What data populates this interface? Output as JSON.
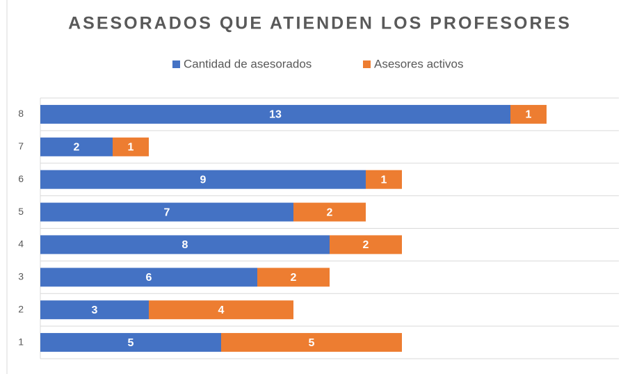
{
  "chart_data": {
    "type": "stacked_barh",
    "title": "ASESORADOS QUE ATIENDEN LOS PROFESORES",
    "categories": [
      "1",
      "2",
      "3",
      "4",
      "5",
      "6",
      "7",
      "8"
    ],
    "series": [
      {
        "name": "Cantidad de asesorados",
        "color": "#4472c4",
        "values": [
          5,
          3,
          6,
          8,
          7,
          9,
          2,
          13
        ]
      },
      {
        "name": "Asesores activos",
        "color": "#ed7d31",
        "values": [
          5,
          4,
          2,
          2,
          2,
          1,
          1,
          1
        ]
      }
    ],
    "xlim": [
      0,
      16
    ],
    "legend": "top"
  }
}
